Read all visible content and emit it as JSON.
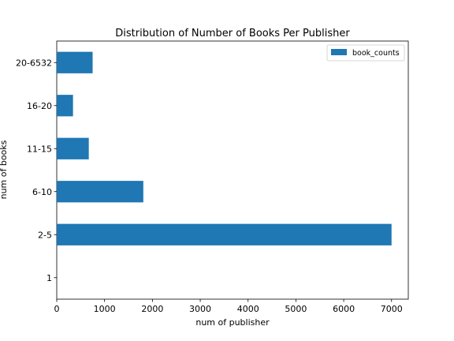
{
  "chart_data": {
    "type": "bar",
    "orientation": "horizontal",
    "title": "Distribution of Number of Books Per Publisher",
    "xlabel": "num of publisher",
    "ylabel": "num of books",
    "categories": [
      "1",
      "2-5",
      "6-10",
      "11-15",
      "16-20",
      "20-6532"
    ],
    "series": [
      {
        "name": "book_counts",
        "values": [
          0,
          7000,
          1810,
          670,
          340,
          750
        ]
      }
    ],
    "xlim": [
      0,
      7350
    ],
    "xticks": [
      "0",
      "1000",
      "2000",
      "3000",
      "4000",
      "5000",
      "6000",
      "7000"
    ],
    "grid": false,
    "legend_position": "top-right",
    "colors": {
      "bar": "#1f77b4",
      "axis": "#000000",
      "legend_border": "#cccccc"
    }
  }
}
